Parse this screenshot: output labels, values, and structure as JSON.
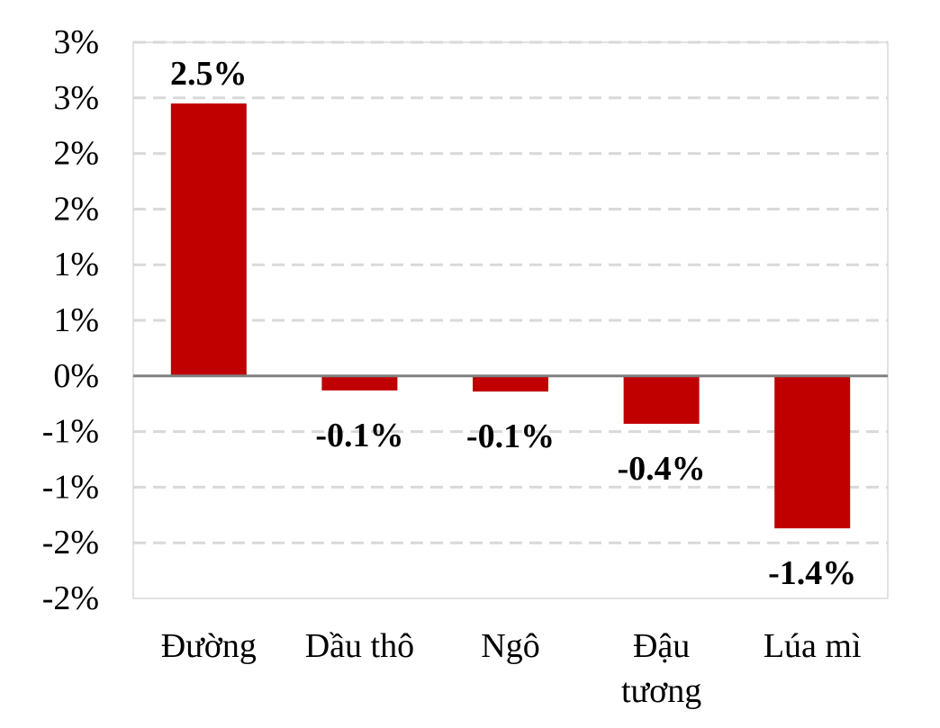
{
  "chart_data": {
    "type": "bar",
    "categories": [
      "Đường",
      "Dầu thô",
      "Ngô",
      "Đậu tương",
      "Lúa mì"
    ],
    "category_lines": [
      [
        "Đường"
      ],
      [
        "Dầu thô"
      ],
      [
        "Ngô"
      ],
      [
        "Đậu",
        "tương"
      ],
      [
        "Lúa mì"
      ]
    ],
    "values": [
      2.45,
      -0.13,
      -0.14,
      -0.43,
      -1.37
    ],
    "data_labels": [
      "2.5%",
      "-0.1%",
      "-0.1%",
      "-0.4%",
      "-1.4%"
    ],
    "y_ticks": [
      3.0,
      2.5,
      2.0,
      1.5,
      1.0,
      0.5,
      0.0,
      -0.5,
      -1.0,
      -1.5,
      -2.0
    ],
    "y_tick_labels": [
      "3%",
      "3%",
      "2%",
      "2%",
      "1%",
      "1%",
      "0%",
      "-1%",
      "-1%",
      "-2%",
      "-2%"
    ],
    "ylim": [
      -2.0,
      3.0
    ],
    "grid": true,
    "legend": "none",
    "title": "",
    "xlabel": "",
    "ylabel": "",
    "colors": {
      "bar": "#c00000",
      "grid": "#d9d9d9",
      "zero_line": "#808080",
      "frame": "#d9d9d9"
    }
  }
}
